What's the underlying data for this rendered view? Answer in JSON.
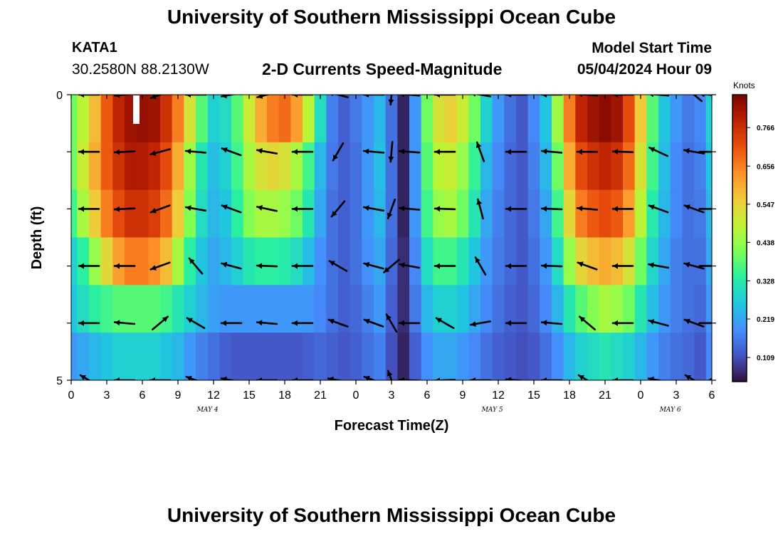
{
  "header": {
    "title": "University of Southern Mississippi Ocean Cube",
    "footer_title": "University of Southern Mississippi Ocean Cube",
    "station": "KATA1",
    "coords": "30.2580N  88.2130W",
    "subtitle": "2-D Currents Speed-Magnitude",
    "model_start_label": "Model Start Time",
    "model_start_value": "05/04/2024 Hour 09"
  },
  "chart_data": {
    "type": "heatmap",
    "title": "2-D Currents Speed-Magnitude",
    "xlabel": "Forecast Time(Z)",
    "ylabel": "Depth (ft)",
    "x_tick_labels": [
      "0",
      "3",
      "6",
      "9",
      "12",
      "15",
      "18",
      "21",
      "0",
      "3",
      "6",
      "9",
      "12",
      "15",
      "18",
      "21",
      "0",
      "3",
      "6"
    ],
    "date_labels": [
      {
        "label": "MAY 4",
        "tick": 11.5
      },
      {
        "label": "MAY 5",
        "tick": 35.5
      },
      {
        "label": "MAY 6",
        "tick": 50.5
      }
    ],
    "y_tick_labels": [
      "0",
      "5"
    ],
    "ylim": [
      0,
      5
    ],
    "colorbar": {
      "units": "Knots",
      "ticks": [
        0.109,
        0.219,
        0.328,
        0.438,
        0.547,
        0.656,
        0.766
      ],
      "range": [
        0.04,
        0.86
      ],
      "palette": [
        "#30123b",
        "#4454c4",
        "#4490fe",
        "#1fc8de",
        "#29efa2",
        "#7dff56",
        "#c1f334",
        "#f1ca3a",
        "#fe922a",
        "#ea4f0d",
        "#be2102",
        "#7a0403"
      ]
    },
    "depth_levels": [
      0,
      1,
      2,
      3,
      4,
      5
    ],
    "time_hours": [
      0,
      1,
      2,
      3,
      4,
      5,
      6,
      7,
      8,
      9,
      10,
      11,
      12,
      13,
      14,
      15,
      16,
      17,
      18,
      19,
      20,
      21,
      22,
      23,
      24,
      25,
      26,
      27,
      28,
      29,
      30,
      31,
      32,
      33,
      34,
      35,
      36,
      37,
      38,
      39,
      40,
      41,
      42,
      43,
      44,
      45,
      46,
      47,
      48,
      49,
      50,
      51,
      52,
      53,
      54
    ],
    "speed_knots": [
      [
        0.4,
        0.48,
        0.58,
        0.7,
        0.78,
        0.82,
        0.83,
        0.82,
        0.76,
        0.66,
        0.52,
        0.38,
        0.28,
        0.3,
        0.38,
        0.5,
        0.6,
        0.66,
        0.68,
        0.62,
        0.48,
        0.3,
        0.17,
        0.13,
        0.16,
        0.2,
        0.24,
        0.15,
        0.06,
        0.2,
        0.4,
        0.52,
        0.55,
        0.5,
        0.4,
        0.28,
        0.2,
        0.15,
        0.12,
        0.18,
        0.26,
        0.45,
        0.66,
        0.78,
        0.82,
        0.84,
        0.82,
        0.72,
        0.56,
        0.38,
        0.26,
        0.2,
        0.16,
        0.18,
        0.28
      ],
      [
        0.4,
        0.5,
        0.6,
        0.7,
        0.76,
        0.8,
        0.8,
        0.78,
        0.72,
        0.6,
        0.45,
        0.32,
        0.25,
        0.28,
        0.36,
        0.46,
        0.52,
        0.54,
        0.52,
        0.46,
        0.36,
        0.24,
        0.16,
        0.13,
        0.15,
        0.2,
        0.25,
        0.15,
        0.06,
        0.2,
        0.38,
        0.48,
        0.5,
        0.44,
        0.35,
        0.24,
        0.18,
        0.14,
        0.12,
        0.17,
        0.24,
        0.4,
        0.6,
        0.72,
        0.76,
        0.78,
        0.76,
        0.68,
        0.52,
        0.36,
        0.25,
        0.18,
        0.15,
        0.17,
        0.26
      ],
      [
        0.36,
        0.46,
        0.56,
        0.66,
        0.72,
        0.76,
        0.76,
        0.74,
        0.68,
        0.56,
        0.42,
        0.3,
        0.24,
        0.26,
        0.34,
        0.42,
        0.46,
        0.46,
        0.44,
        0.4,
        0.32,
        0.22,
        0.15,
        0.13,
        0.15,
        0.2,
        0.24,
        0.15,
        0.06,
        0.2,
        0.36,
        0.44,
        0.46,
        0.4,
        0.32,
        0.22,
        0.17,
        0.14,
        0.12,
        0.16,
        0.22,
        0.36,
        0.54,
        0.66,
        0.7,
        0.72,
        0.7,
        0.62,
        0.48,
        0.33,
        0.24,
        0.18,
        0.15,
        0.16,
        0.24
      ],
      [
        0.28,
        0.34,
        0.44,
        0.54,
        0.62,
        0.66,
        0.66,
        0.64,
        0.58,
        0.46,
        0.34,
        0.26,
        0.22,
        0.24,
        0.28,
        0.32,
        0.34,
        0.34,
        0.33,
        0.3,
        0.25,
        0.19,
        0.15,
        0.13,
        0.15,
        0.19,
        0.22,
        0.14,
        0.07,
        0.18,
        0.3,
        0.36,
        0.36,
        0.32,
        0.26,
        0.2,
        0.16,
        0.14,
        0.12,
        0.15,
        0.2,
        0.3,
        0.44,
        0.54,
        0.58,
        0.6,
        0.58,
        0.52,
        0.4,
        0.29,
        0.22,
        0.17,
        0.15,
        0.15,
        0.22
      ],
      [
        0.26,
        0.3,
        0.34,
        0.36,
        0.38,
        0.38,
        0.38,
        0.38,
        0.36,
        0.32,
        0.28,
        0.24,
        0.21,
        0.2,
        0.2,
        0.2,
        0.2,
        0.2,
        0.2,
        0.2,
        0.2,
        0.18,
        0.15,
        0.13,
        0.14,
        0.17,
        0.2,
        0.13,
        0.07,
        0.16,
        0.24,
        0.28,
        0.28,
        0.26,
        0.22,
        0.18,
        0.15,
        0.13,
        0.12,
        0.14,
        0.18,
        0.24,
        0.32,
        0.38,
        0.42,
        0.46,
        0.44,
        0.4,
        0.32,
        0.25,
        0.2,
        0.17,
        0.15,
        0.14,
        0.2
      ],
      [
        0.2,
        0.22,
        0.24,
        0.26,
        0.28,
        0.28,
        0.28,
        0.28,
        0.26,
        0.24,
        0.2,
        0.17,
        0.15,
        0.13,
        0.12,
        0.12,
        0.12,
        0.12,
        0.12,
        0.12,
        0.13,
        0.14,
        0.13,
        0.12,
        0.13,
        0.15,
        0.17,
        0.11,
        0.06,
        0.13,
        0.19,
        0.22,
        0.22,
        0.2,
        0.18,
        0.15,
        0.13,
        0.12,
        0.11,
        0.12,
        0.15,
        0.19,
        0.24,
        0.28,
        0.3,
        0.32,
        0.3,
        0.28,
        0.24,
        0.2,
        0.17,
        0.15,
        0.14,
        0.12,
        0.18
      ]
    ],
    "vector_times": [
      1.5,
      4.5,
      7.5,
      10.5,
      13.5,
      16.5,
      19.5,
      22.5,
      25.5,
      27.0,
      28.5,
      31.5,
      34.5,
      37.5,
      40.5,
      43.5,
      46.5,
      49.5,
      52.5,
      53.8
    ],
    "vector_directions_deg": [
      [
        180,
        185,
        200,
        180,
        190,
        195,
        180,
        165,
        180,
        265,
        175,
        180,
        170,
        180,
        180,
        175,
        180,
        175,
        140,
        175
      ],
      [
        180,
        183,
        195,
        175,
        160,
        170,
        180,
        240,
        175,
        265,
        176,
        180,
        110,
        180,
        175,
        180,
        178,
        155,
        170,
        0
      ],
      [
        180,
        183,
        200,
        170,
        160,
        168,
        180,
        230,
        170,
        250,
        175,
        178,
        105,
        180,
        178,
        175,
        180,
        160,
        160,
        0
      ],
      [
        180,
        180,
        200,
        130,
        165,
        178,
        180,
        150,
        165,
        220,
        170,
        180,
        120,
        180,
        178,
        160,
        180,
        170,
        165,
        0
      ],
      [
        180,
        175,
        40,
        150,
        180,
        175,
        180,
        160,
        160,
        120,
        180,
        150,
        190,
        180,
        175,
        140,
        180,
        165,
        160,
        0
      ],
      [
        150,
        180,
        180,
        160,
        170,
        180,
        180,
        170,
        160,
        110,
        178,
        182,
        180,
        175,
        180,
        150,
        180,
        170,
        150,
        30
      ]
    ]
  }
}
